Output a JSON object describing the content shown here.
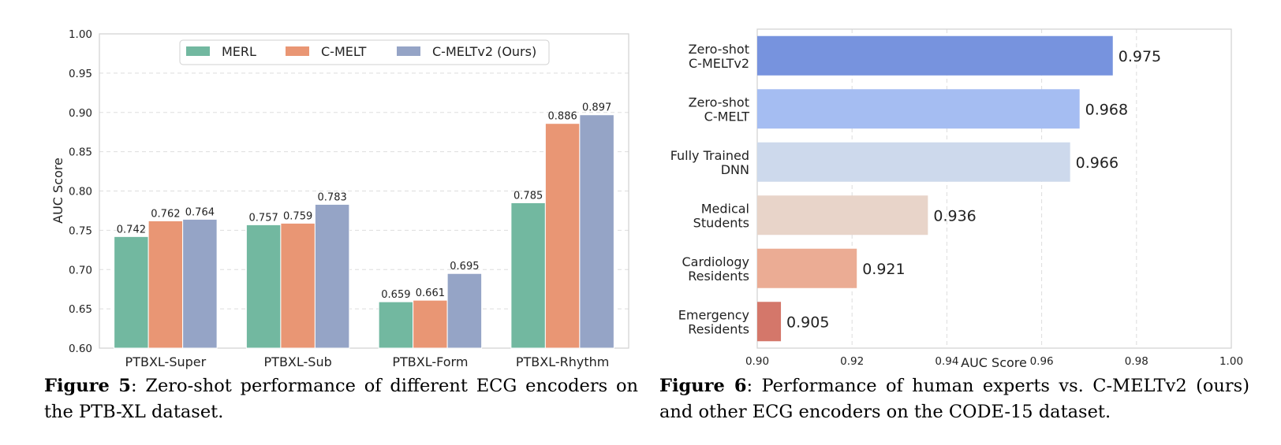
{
  "chart_data": [
    {
      "type": "bar",
      "ylabel": "AUC Score",
      "xlabel": "",
      "ylim": [
        0.6,
        1.0
      ],
      "yticks": [
        0.6,
        0.65,
        0.7,
        0.75,
        0.8,
        0.85,
        0.9,
        0.95,
        1.0
      ],
      "ytick_labels": [
        "0.60",
        "0.65",
        "0.70",
        "0.75",
        "0.80",
        "0.85",
        "0.90",
        "0.95",
        "1.00"
      ],
      "categories": [
        "PTBXL-Super",
        "PTBXL-Sub",
        "PTBXL-Form",
        "PTBXL-Rhythm"
      ],
      "series": [
        {
          "name": "MERL",
          "color": "#72b8a0",
          "values": [
            0.742,
            0.757,
            0.659,
            0.785
          ],
          "labels": [
            "0.742",
            "0.757",
            "0.659",
            "0.785"
          ]
        },
        {
          "name": "C-MELT",
          "color": "#e99674",
          "values": [
            0.762,
            0.759,
            0.661,
            0.886
          ],
          "labels": [
            "0.762",
            "0.759",
            "0.661",
            "0.886"
          ]
        },
        {
          "name": "C-MELTv2 (Ours)",
          "color": "#95a4c6",
          "values": [
            0.764,
            0.783,
            0.695,
            0.897
          ],
          "labels": [
            "0.764",
            "0.783",
            "0.695",
            "0.897"
          ]
        }
      ],
      "grid": true,
      "legend": "top-center"
    },
    {
      "type": "bar",
      "orientation": "horizontal",
      "xlabel": "AUC Score",
      "ylabel": "",
      "xlim": [
        0.9,
        1.0
      ],
      "xticks": [
        0.9,
        0.92,
        0.94,
        0.96,
        0.98,
        1.0
      ],
      "xtick_labels": [
        "0.90",
        "0.92",
        "0.94",
        "0.96",
        "0.98",
        "1.00"
      ],
      "categories": [
        [
          "Zero-shot",
          "C-MELTv2"
        ],
        [
          "Zero-shot",
          "C-MELT"
        ],
        [
          "Fully Trained",
          "DNN"
        ],
        [
          "Medical",
          "Students"
        ],
        [
          "Cardiology",
          "Residents"
        ],
        [
          "Emergency",
          "Residents"
        ]
      ],
      "values": [
        0.975,
        0.968,
        0.966,
        0.936,
        0.921,
        0.905
      ],
      "labels": [
        "0.975",
        "0.968",
        "0.966",
        "0.936",
        "0.921",
        "0.905"
      ],
      "colors": [
        "#7793de",
        "#a5bdf2",
        "#cdd9ec",
        "#e8d4c9",
        "#ebac94",
        "#d4776a"
      ],
      "grid": true
    }
  ],
  "captions": {
    "fig5_label": "Figure 5",
    "fig5_text": ": Zero-shot performance of different ECG encoders on the PTB-XL dataset.",
    "fig6_label": "Figure 6",
    "fig6_text": ": Performance of human experts vs. C-MELTv2 (ours) and other ECG encoders on the CODE-15 dataset."
  }
}
